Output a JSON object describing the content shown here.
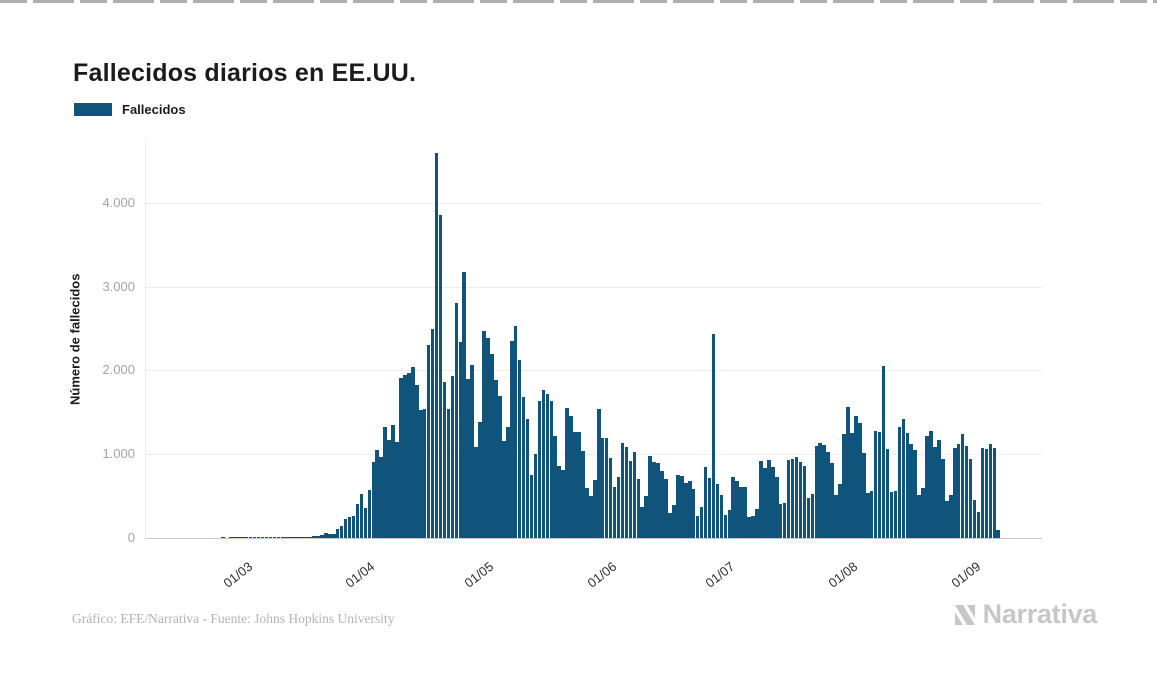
{
  "header": {
    "title": "Fallecidos diarios en EE.UU."
  },
  "legend": {
    "label": "Fallecidos",
    "color": "#11547b"
  },
  "footer": {
    "credit": "Gráfico: EFE/Narrativa - Fuente: Johns Hopkins University",
    "brand": "Narrativa"
  },
  "chart_data": {
    "type": "bar",
    "title": "Fallecidos diarios en EE.UU.",
    "series_name": "Fallecidos",
    "xlabel": "",
    "ylabel": "Número de fallecidos",
    "bar_color": "#11547b",
    "grid": "horizontal",
    "legend_position": "top-left",
    "ylim": [
      0,
      4750
    ],
    "y_ticks": [
      "0",
      "1.000",
      "2.000",
      "3.000",
      "4.000"
    ],
    "y_tick_values": [
      0,
      1000,
      2000,
      3000,
      4000
    ],
    "x_ticks": [
      {
        "label": "01/03",
        "index": 15
      },
      {
        "label": "01/04",
        "index": 46
      },
      {
        "label": "01/05",
        "index": 76
      },
      {
        "label": "01/06",
        "index": 107
      },
      {
        "label": "01/07",
        "index": 137
      },
      {
        "label": "01/08",
        "index": 168
      },
      {
        "label": "01/09",
        "index": 199
      }
    ],
    "x_padding_days": {
      "before": 11,
      "after": 10
    },
    "values": [
      0,
      0,
      0,
      0,
      0,
      0,
      0,
      1,
      0,
      1,
      1,
      2,
      1,
      3,
      1,
      1,
      5,
      3,
      2,
      1,
      3,
      3,
      3,
      4,
      4,
      8,
      3,
      8,
      8,
      11,
      18,
      23,
      41,
      57,
      49,
      46,
      111,
      140,
      225,
      247,
      268,
      411,
      525,
      363,
      573,
      912,
      1049,
      968,
      1321,
      1165,
      1344,
      1146,
      1906,
      1943,
      1973,
      2035,
      1830,
      1528,
      1535,
      2299,
      2494,
      4591,
      3857,
      1867,
      1539,
      1939,
      2804,
      2343,
      3179,
      1893,
      2065,
      1087,
      1384,
      2470,
      2390,
      2201,
      1883,
      1691,
      1154,
      1324,
      2350,
      2528,
      2129,
      1687,
      1422,
      750,
      1008,
      1630,
      1772,
      1715,
      1635,
      1218,
      865,
      808,
      1552,
      1461,
      1263,
      1260,
      1035,
      592,
      505,
      693,
      1534,
      1199,
      1193,
      960,
      605,
      730,
      1134,
      1083,
      921,
      1031,
      709,
      372,
      503,
      979,
      907,
      891,
      802,
      709,
      302,
      389,
      752,
      734,
      651,
      680,
      582,
      267,
      372,
      851,
      721,
      2437,
      648,
      511,
      271,
      336,
      724,
      685,
      613,
      613,
      254,
      263,
      351,
      920,
      831,
      935,
      849,
      730,
      411,
      419,
      934,
      940,
      963,
      908,
      859,
      483,
      531,
      1100,
      1134,
      1113,
      1029,
      900,
      511,
      640,
      1242,
      1560,
      1256,
      1455,
      1370,
      1015,
      532,
      561,
      1278,
      1270,
      2047,
      1065,
      546,
      561,
      1326,
      1420,
      1254,
      1124,
      1056,
      510,
      591,
      1218,
      1278,
      1090,
      1169,
      942,
      440,
      511,
      1077,
      1124,
      1242,
      1100,
      946,
      450,
      310,
      1077,
      1060,
      1124,
      1077,
      95
    ]
  }
}
